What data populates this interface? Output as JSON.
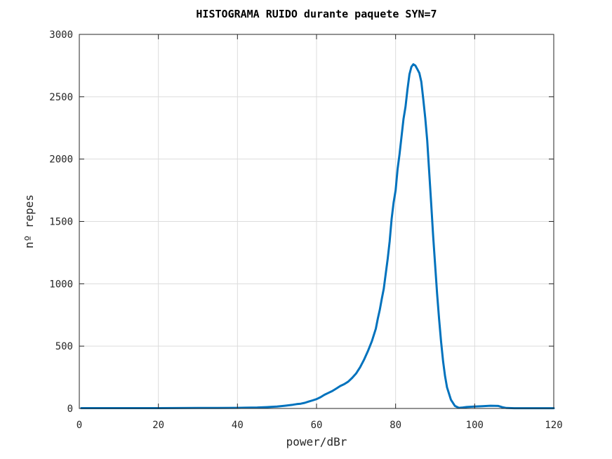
{
  "chart_data": {
    "type": "line",
    "title": "HISTOGRAMA RUIDO durante paquete SYN=7",
    "xlabel": "power/dBr",
    "ylabel": "nº repes",
    "xlim": [
      0,
      120
    ],
    "ylim": [
      0,
      3000
    ],
    "xticks": [
      0,
      20,
      40,
      60,
      80,
      100,
      120
    ],
    "yticks": [
      0,
      500,
      1000,
      1500,
      2000,
      2500,
      3000
    ],
    "grid": true,
    "series_color": "#0072BD",
    "series": [
      {
        "x": [
          0.5,
          10,
          20,
          30,
          35,
          40,
          42,
          45,
          48,
          50,
          52,
          54,
          55,
          56,
          57,
          58,
          59,
          60,
          61,
          62,
          63,
          64,
          65,
          66,
          67,
          68,
          69,
          70,
          71,
          72,
          73,
          74,
          75,
          75.5,
          76,
          76.5,
          77,
          77.5,
          78,
          78.5,
          79,
          79.5,
          80,
          80.5,
          81,
          81.5,
          82,
          82.5,
          83,
          83.5,
          84,
          84.5,
          85,
          85.5,
          86,
          86.5,
          87,
          87.5,
          88,
          88.5,
          89,
          89.5,
          90,
          90.5,
          91,
          91.5,
          92,
          92.5,
          93,
          94,
          95,
          96,
          97,
          98,
          100,
          102,
          104,
          106,
          107,
          108,
          110,
          120
        ],
        "y": [
          3,
          3,
          3,
          4,
          4,
          5,
          6,
          8,
          12,
          15,
          22,
          30,
          35,
          38,
          45,
          55,
          65,
          75,
          90,
          110,
          125,
          140,
          160,
          180,
          195,
          215,
          245,
          280,
          330,
          390,
          460,
          540,
          640,
          720,
          790,
          880,
          960,
          1080,
          1200,
          1340,
          1520,
          1650,
          1750,
          1920,
          2040,
          2180,
          2320,
          2420,
          2560,
          2680,
          2740,
          2760,
          2750,
          2720,
          2690,
          2620,
          2480,
          2330,
          2150,
          1900,
          1640,
          1380,
          1150,
          920,
          720,
          540,
          380,
          260,
          170,
          70,
          20,
          5,
          8,
          12,
          15,
          18,
          22,
          20,
          10,
          4,
          2,
          2
        ]
      }
    ]
  }
}
